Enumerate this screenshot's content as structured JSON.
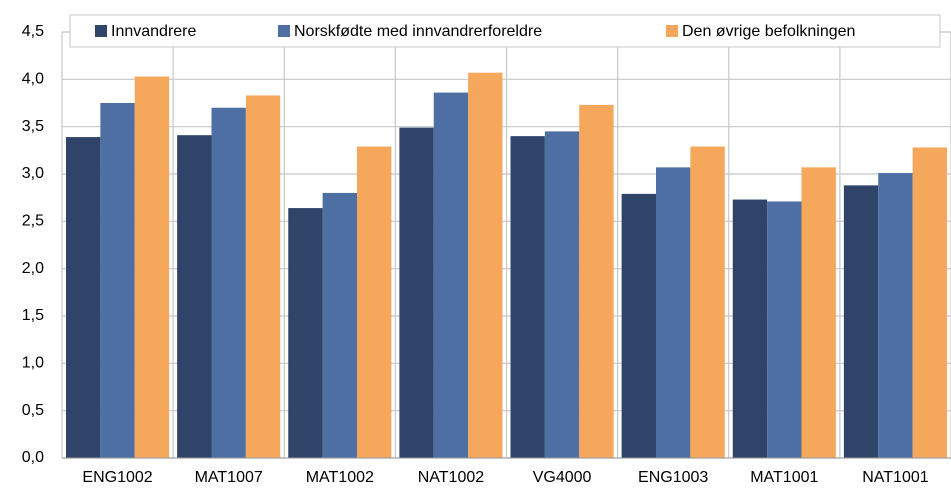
{
  "chart_data": {
    "type": "bar",
    "categories": [
      "ENG1002",
      "MAT1007",
      "MAT1002",
      "NAT1002",
      "VG4000",
      "ENG1003",
      "MAT1001",
      "NAT1001"
    ],
    "series": [
      {
        "name": "Innvandrere",
        "color": "#2f4468",
        "values": [
          3.39,
          3.41,
          2.64,
          3.49,
          3.4,
          2.79,
          2.73,
          2.88
        ]
      },
      {
        "name": "Norskfødte med innvandrerforeldre",
        "color": "#4e6fa3",
        "values": [
          3.75,
          3.7,
          2.8,
          3.86,
          3.45,
          3.07,
          2.71,
          3.01
        ]
      },
      {
        "name": "Den øvrige befolkningen",
        "color": "#f5a85c",
        "values": [
          4.03,
          3.83,
          3.29,
          4.07,
          3.73,
          3.29,
          3.07,
          3.28
        ]
      }
    ],
    "ylim": [
      0,
      4.5
    ],
    "yticks": [
      {
        "value": 0,
        "label": "0,0"
      },
      {
        "value": 0.5,
        "label": "0,5"
      },
      {
        "value": 1,
        "label": "1,0"
      },
      {
        "value": 1.5,
        "label": "1,5"
      },
      {
        "value": 2,
        "label": "2,0"
      },
      {
        "value": 2.5,
        "label": "2,5"
      },
      {
        "value": 3,
        "label": "3,0"
      },
      {
        "value": 3.5,
        "label": "3,5"
      },
      {
        "value": 4,
        "label": "4,0"
      },
      {
        "value": 4.5,
        "label": "4,5"
      }
    ],
    "grid": true
  }
}
